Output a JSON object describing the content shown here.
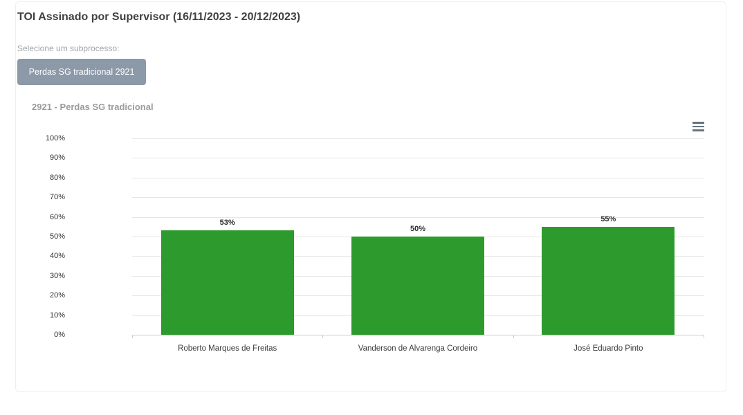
{
  "header": {
    "title": "TOI Assinado por Supervisor (16/11/2023 - 20/12/2023)",
    "select_label": "Selecione um subprocesso:",
    "subprocess_button_label": "Perdas SG tradicional 2921"
  },
  "chart_data": {
    "type": "bar",
    "title": "2921 - Perdas SG tradicional",
    "categories": [
      "Roberto Marques de Freitas",
      "Vanderson de Alvarenga Cordeiro",
      "José Eduardo Pinto"
    ],
    "values": [
      53,
      50,
      55
    ],
    "value_labels": [
      "53%",
      "50%",
      "55%"
    ],
    "y_ticks": [
      100,
      90,
      80,
      70,
      60,
      50,
      40,
      30,
      20,
      10,
      0
    ],
    "y_tick_suffix": "%",
    "ylim": [
      0,
      100
    ],
    "grid": true,
    "legend": false,
    "xlabel": "",
    "ylabel": "",
    "bar_color": "#2d9a2d"
  },
  "icons": {
    "context_menu": "hamburger-menu-icon"
  },
  "colors": {
    "bar": "#2d9a2d",
    "button_bg": "#8b99a8",
    "button_text": "#ffffff",
    "title_text": "#414141",
    "muted_text": "#9fa4a8",
    "chart_subtitle_text": "#9b9b9b",
    "axis_label": "#333333",
    "gridline": "#e6e6e6",
    "axis_line": "#cccccc",
    "card_border": "#efefef"
  }
}
